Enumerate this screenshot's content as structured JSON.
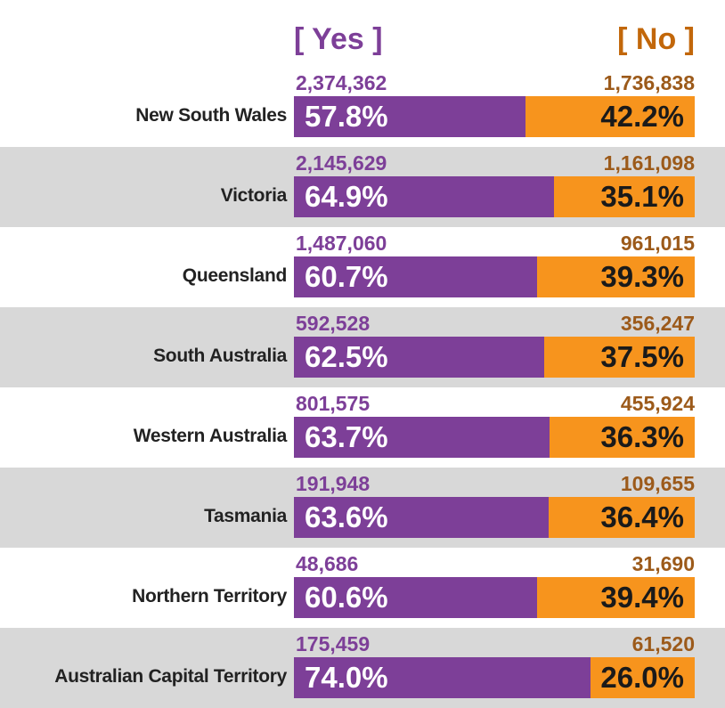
{
  "legend": {
    "yes_label": "[ Yes ]",
    "no_label": "[ No ]"
  },
  "colors": {
    "yes": "#7d3f98",
    "no": "#f7941d",
    "row_shade": "#d8d8d8"
  },
  "chart_data": {
    "type": "bar",
    "categories": [
      "New South Wales",
      "Victoria",
      "Queensland",
      "South Australia",
      "Western Australia",
      "Tasmania",
      "Northern Territory",
      "Australian Capital Territory"
    ],
    "series": [
      {
        "name": "[ Yes ]",
        "counts": [
          "2,374,362",
          "2,145,629",
          "1,487,060",
          "592,528",
          "801,575",
          "191,948",
          "48,686",
          "175,459"
        ],
        "percent_labels": [
          "57.8%",
          "64.9%",
          "60.7%",
          "62.5%",
          "63.7%",
          "63.6%",
          "60.6%",
          "74.0%"
        ],
        "values": [
          57.8,
          64.9,
          60.7,
          62.5,
          63.7,
          63.6,
          60.6,
          74.0
        ]
      },
      {
        "name": "[ No ]",
        "counts": [
          "1,736,838",
          "1,161,098",
          "961,015",
          "356,247",
          "455,924",
          "109,655",
          "31,690",
          "61,520"
        ],
        "percent_labels": [
          "42.2%",
          "35.1%",
          "39.3%",
          "37.5%",
          "36.3%",
          "36.4%",
          "39.4%",
          "26.0%"
        ],
        "values": [
          42.2,
          35.1,
          39.3,
          37.5,
          36.3,
          36.4,
          39.4,
          26.0
        ]
      }
    ],
    "stacked": true,
    "orientation": "horizontal",
    "xlim": [
      0,
      100
    ],
    "title": "",
    "xlabel": "",
    "ylabel": "",
    "legend_position": "top"
  }
}
